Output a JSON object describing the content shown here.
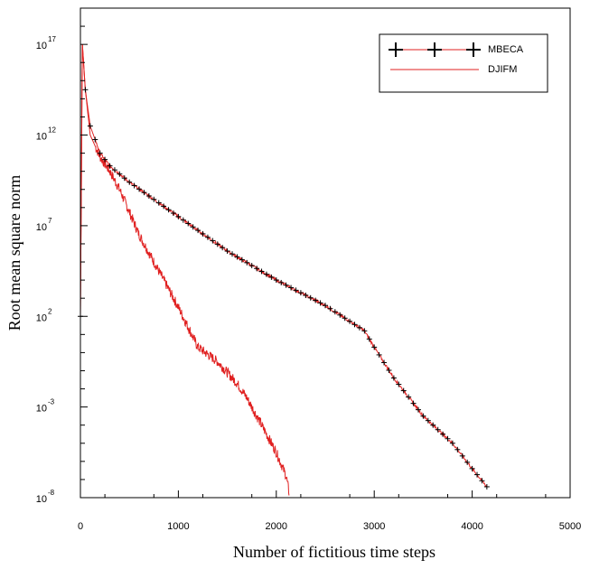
{
  "chart_data": {
    "type": "line",
    "xlabel": "Number of fictitious time steps",
    "ylabel": "Root mean square norm",
    "xlim": [
      0,
      5000
    ],
    "ylim": [
      1e-08,
      1e+19
    ],
    "yscale": "log",
    "x_ticks": [
      0,
      1000,
      2000,
      3000,
      4000,
      5000
    ],
    "x_tick_labels": [
      "0",
      "1000",
      "2000",
      "3000",
      "4000",
      "5000"
    ],
    "y_ticks": [
      {
        "base": "10",
        "exp": "-8",
        "value": 1e-08
      },
      {
        "base": "10",
        "exp": "-3",
        "value": 0.001
      },
      {
        "base": "10",
        "exp": "2",
        "value": 100.0
      },
      {
        "base": "10",
        "exp": "7",
        "value": 10000000.0
      },
      {
        "base": "10",
        "exp": "12",
        "value": 1000000000000.0
      },
      {
        "base": "10",
        "exp": "17",
        "value": 1e+17
      }
    ],
    "grid": false,
    "legend": "top-right",
    "series": [
      {
        "name": "MBECA",
        "color": "#000000",
        "line_color": "#e02020",
        "marker": "plus",
        "x": [
          0,
          20,
          50,
          100,
          200,
          300,
          500,
          1000,
          1500,
          2000,
          2500,
          2900,
          3000,
          3200,
          3500,
          3800,
          4000,
          4150
        ],
        "log10_y": [
          2,
          17,
          14.5,
          12.5,
          11,
          10.3,
          9.4,
          7.5,
          5.6,
          4,
          2.6,
          1.2,
          0.3,
          -1.4,
          -3.5,
          -5,
          -6.4,
          -7.4
        ]
      },
      {
        "name": "DJIFM",
        "color": "#e02020",
        "x": [
          0,
          20,
          50,
          100,
          200,
          300,
          400,
          600,
          800,
          1000,
          1200,
          1400,
          1600,
          1700,
          1800,
          1900,
          2000,
          2100,
          2130
        ],
        "log10_y": [
          2,
          17,
          14.5,
          12,
          10.8,
          10,
          9,
          6.5,
          4.5,
          2.5,
          0.3,
          -0.5,
          -1.7,
          -2.5,
          -3.5,
          -4.5,
          -5.5,
          -6.8,
          -7.7
        ]
      }
    ]
  }
}
